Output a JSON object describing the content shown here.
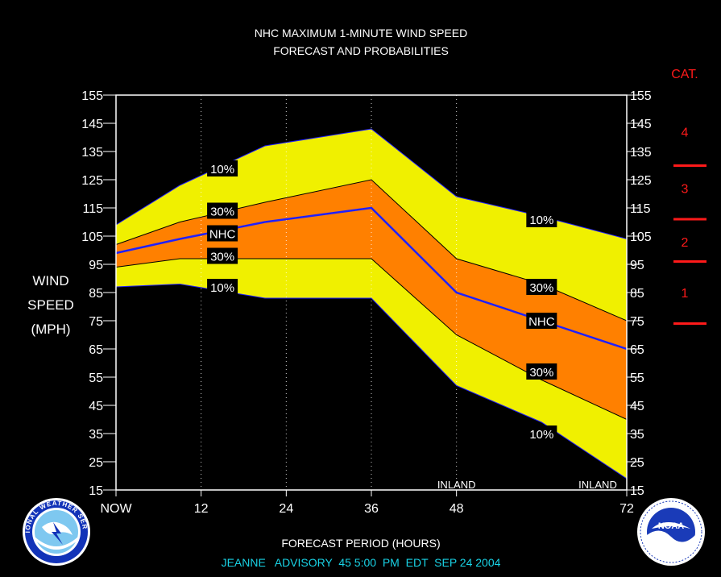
{
  "chart_data": {
    "type": "area",
    "title": "NHC MAXIMUM 1-MINUTE WIND SPEED",
    "subtitle": "FORECAST AND PROBABILITIES",
    "ylabel": [
      "WIND",
      "SPEED",
      "(MPH)"
    ],
    "xlabel": "FORECAST PERIOD (HOURS)",
    "ylim": [
      15,
      155
    ],
    "xlim": [
      0,
      72
    ],
    "y_ticks": [
      "15",
      "25",
      "35",
      "45",
      "55",
      "65",
      "75",
      "85",
      "95",
      "105",
      "115",
      "125",
      "135",
      "145",
      "155"
    ],
    "x_ticks": [
      {
        "x": 0,
        "label": "NOW"
      },
      {
        "x": 12,
        "label": "12"
      },
      {
        "x": 24,
        "label": "24"
      },
      {
        "x": 36,
        "label": "36"
      },
      {
        "x": 48,
        "label": "48"
      },
      {
        "x": 72,
        "label": "72"
      }
    ],
    "x": [
      0,
      9,
      21,
      36,
      48,
      60,
      72
    ],
    "series": [
      {
        "name": "10%",
        "band": "upper",
        "color": "#f0f000",
        "values": [
          109,
          123,
          137,
          143,
          119,
          112,
          104
        ]
      },
      {
        "name": "30%",
        "band": "upper",
        "color": "#ff8000",
        "values": [
          102,
          110,
          117,
          125,
          97,
          88,
          75
        ]
      },
      {
        "name": "NHC",
        "band": "forecast",
        "color": "#2020ff",
        "values": [
          99,
          104,
          110,
          115,
          85,
          75,
          65
        ]
      },
      {
        "name": "30%",
        "band": "lower",
        "color": "#ff8000",
        "values": [
          94,
          97,
          97,
          97,
          70,
          54,
          40
        ]
      },
      {
        "name": "10%",
        "band": "lower",
        "color": "#f0f000",
        "values": [
          87,
          88,
          83,
          83,
          52,
          39,
          19
        ]
      }
    ],
    "annotations": [
      {
        "text": "10%",
        "x": 15,
        "y": 129
      },
      {
        "text": "30%",
        "x": 15,
        "y": 114
      },
      {
        "text": "NHC",
        "x": 15,
        "y": 106
      },
      {
        "text": "30%",
        "x": 15,
        "y": 98
      },
      {
        "text": "10%",
        "x": 15,
        "y": 87
      },
      {
        "text": "10%",
        "x": 60,
        "y": 111
      },
      {
        "text": "30%",
        "x": 60,
        "y": 87
      },
      {
        "text": "NHC",
        "x": 60,
        "y": 75
      },
      {
        "text": "30%",
        "x": 60,
        "y": 57
      },
      {
        "text": "10%",
        "x": 60,
        "y": 35
      }
    ],
    "inland_labels": [
      {
        "text": "INLAND",
        "x": 48
      },
      {
        "text": "INLAND",
        "x": 72
      }
    ],
    "category_header": "CAT.",
    "categories": [
      {
        "label": "4",
        "y": 142
      },
      {
        "label": "3",
        "y": 122
      },
      {
        "label": "2",
        "y": 103
      },
      {
        "label": "1",
        "y": 85
      }
    ],
    "category_thresholds": [
      130,
      111,
      96,
      74
    ],
    "grid": "dotted vertical at 12h intervals"
  },
  "footer": {
    "advisory": "JEANNE   ADVISORY  45 5:00  PM  EDT  SEP 24 2004"
  },
  "logos": {
    "left": "NATIONAL WEATHER SERVICE",
    "right": "NOAA"
  },
  "colors": {
    "background": "#000000",
    "outer_band": "#f0f000",
    "inner_band": "#ff8000",
    "forecast_line": "#2020ff",
    "category": "#ff1a1a",
    "advisory": "#19d3e6"
  }
}
